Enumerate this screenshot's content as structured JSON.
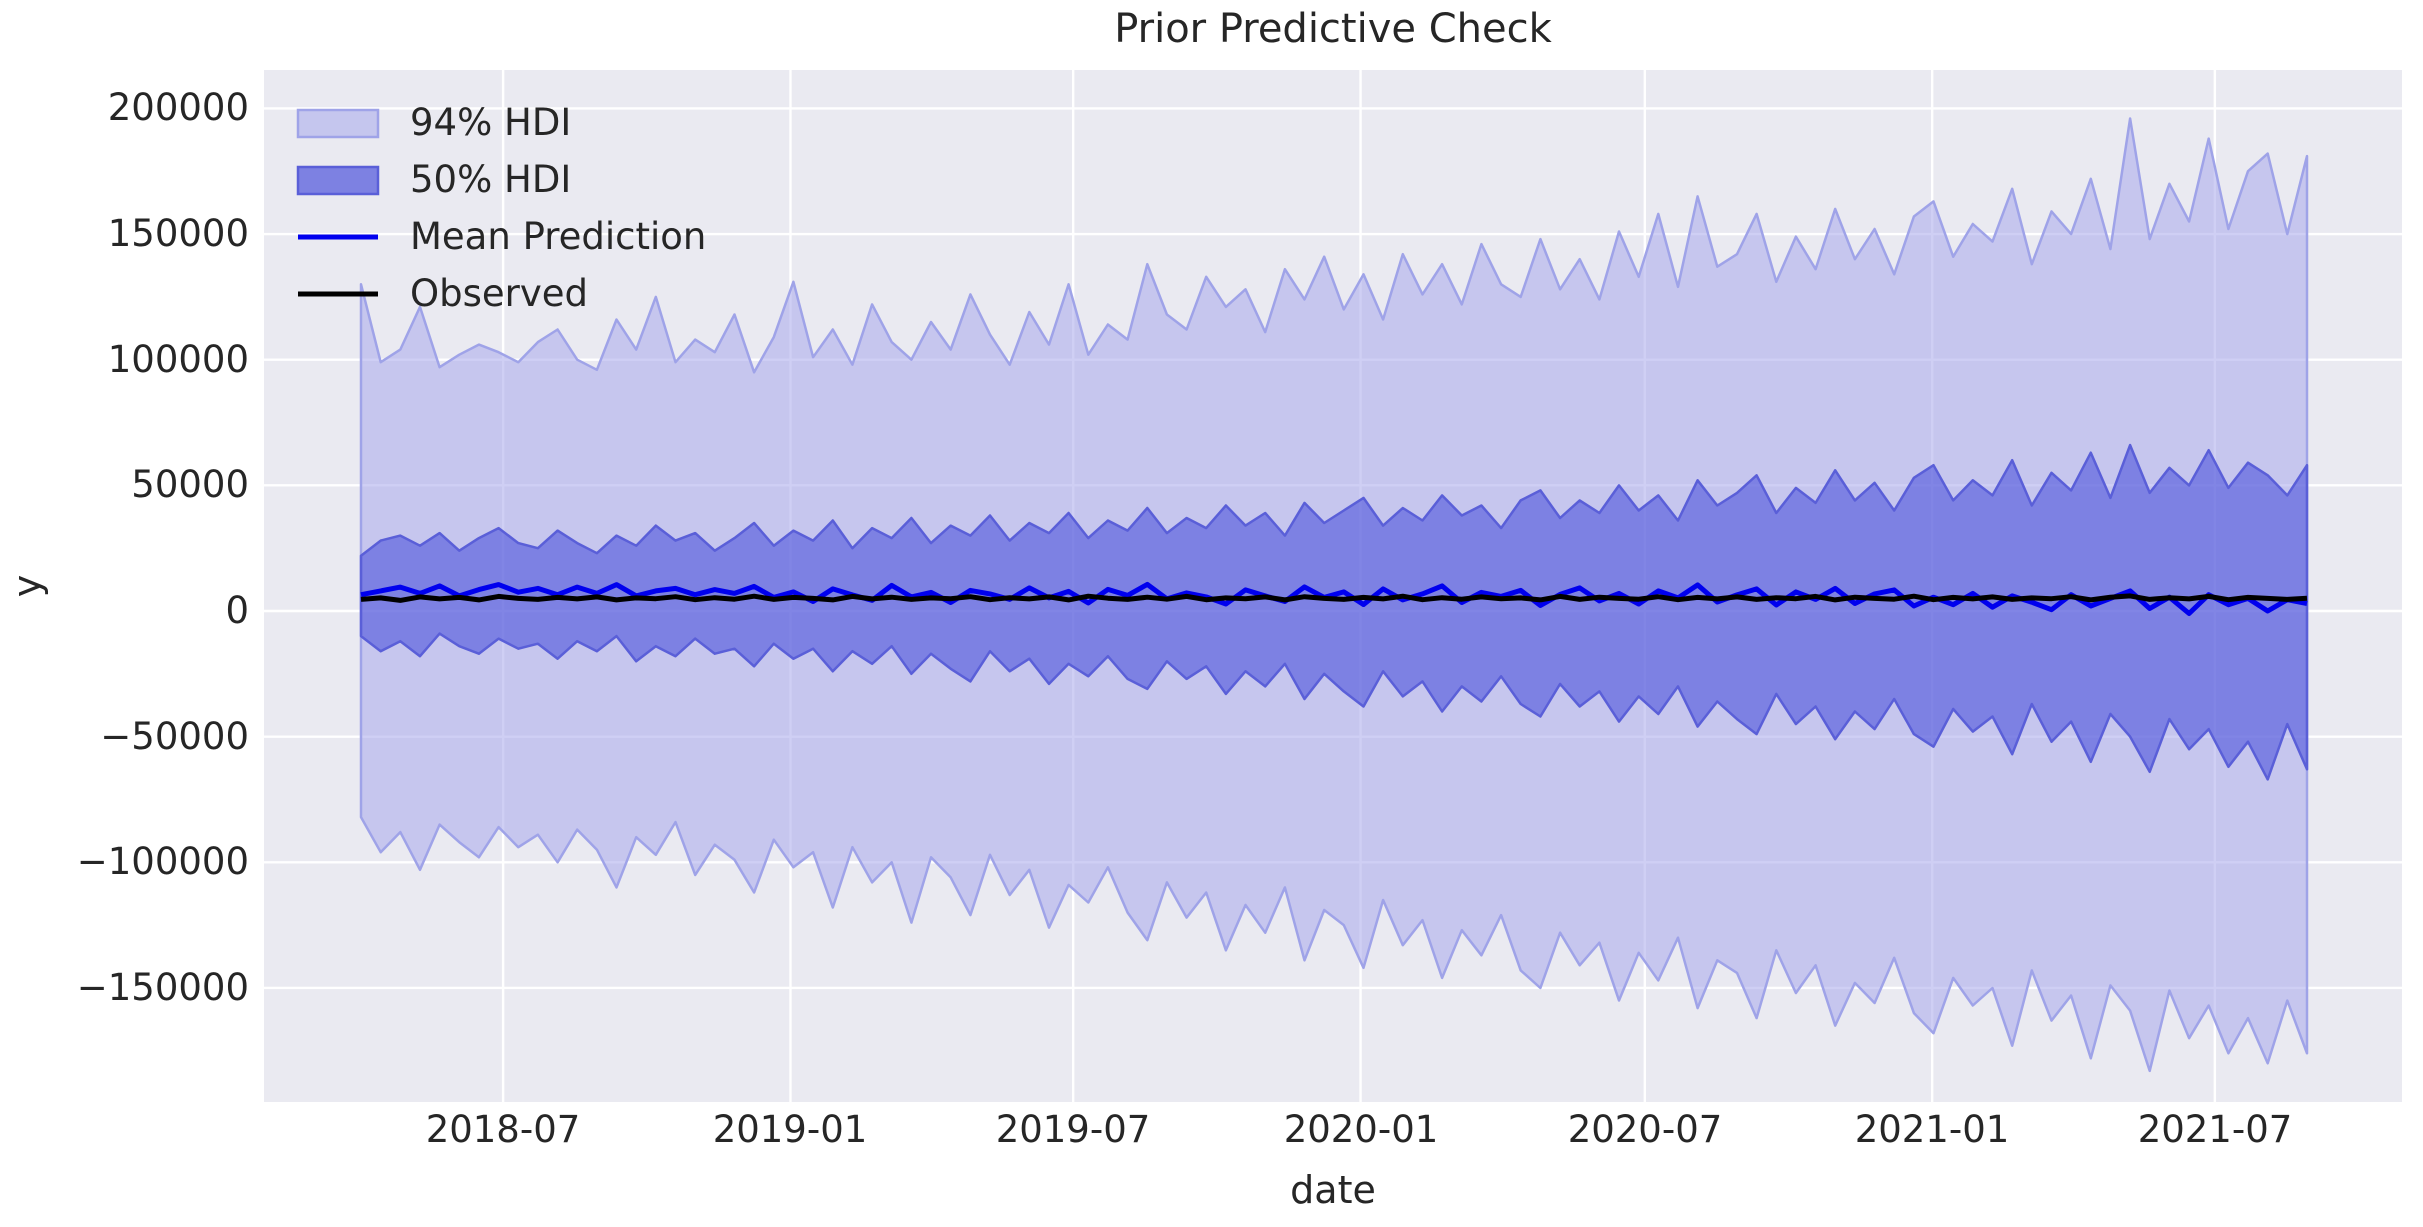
{
  "figure": {
    "title": "Prior Predictive Check",
    "xlabel": "date",
    "ylabel": "y"
  },
  "legend": {
    "position": "upper left",
    "items": [
      {
        "label": "94% HDI",
        "type": "patch",
        "fill": "#c5c6ee",
        "edge": "#9fa3e8"
      },
      {
        "label": "50% HDI",
        "type": "patch",
        "fill": "#7d81e2",
        "edge": "#5a5fd8"
      },
      {
        "label": "Mean Prediction",
        "type": "line",
        "color": "#0000ee"
      },
      {
        "label": "Observed",
        "type": "line",
        "color": "#000000"
      }
    ]
  },
  "style": {
    "figure_bg": "#ffffff",
    "plot_bg": "#eaeaf1",
    "grid": "#ffffff",
    "text": "#262626",
    "band94_fill": "rgba(167,168,235,0.55)",
    "band94_edge": "#9fa3e8",
    "band50_fill": "rgba(81,87,219,0.62)",
    "band50_edge": "#5a5fd8",
    "mean_color": "#0000ee",
    "observed_color": "#000000"
  },
  "chart_data": {
    "type": "line",
    "title": "Prior Predictive Check",
    "xlabel": "date",
    "ylabel": "y",
    "grid": true,
    "legend_position": "upper left",
    "ylim": [
      -196000,
      216000
    ],
    "x_axis": {
      "start_date": "2018-04-01",
      "end_date": "2021-08-29",
      "total_days": 1246,
      "note": "values are estimates read from the plot; 100 evenly spaced sample points",
      "ticks": [
        {
          "label": "2018-07",
          "day": 91
        },
        {
          "label": "2019-01",
          "day": 275
        },
        {
          "label": "2019-07",
          "day": 456
        },
        {
          "label": "2020-01",
          "day": 640
        },
        {
          "label": "2020-07",
          "day": 822
        },
        {
          "label": "2021-01",
          "day": 1006
        },
        {
          "label": "2021-07",
          "day": 1187
        }
      ]
    },
    "y_axis": {
      "ticks": [
        {
          "label": "200000",
          "value": 200000
        },
        {
          "label": "150000",
          "value": 150000
        },
        {
          "label": "100000",
          "value": 100000
        },
        {
          "label": "50000",
          "value": 50000
        },
        {
          "label": "0",
          "value": 0
        },
        {
          "label": "−50000",
          "value": -50000
        },
        {
          "label": "−100000",
          "value": -100000
        },
        {
          "label": "−150000",
          "value": -150000
        }
      ]
    },
    "series": [
      {
        "name": "94% HDI upper",
        "values": [
          130000,
          99000,
          104000,
          121000,
          97000,
          102000,
          106000,
          103000,
          99000,
          107000,
          112000,
          100000,
          96000,
          116000,
          104000,
          125000,
          99000,
          108000,
          103000,
          118000,
          95000,
          109000,
          131000,
          101000,
          112000,
          98000,
          122000,
          107000,
          100000,
          115000,
          104000,
          126000,
          110000,
          98000,
          119000,
          106000,
          130000,
          102000,
          114000,
          108000,
          138000,
          118000,
          112000,
          133000,
          121000,
          128000,
          111000,
          136000,
          124000,
          141000,
          120000,
          134000,
          116000,
          142000,
          126000,
          138000,
          122000,
          146000,
          130000,
          125000,
          148000,
          128000,
          140000,
          124000,
          151000,
          133000,
          158000,
          129000,
          165000,
          137000,
          142000,
          158000,
          131000,
          149000,
          136000,
          160000,
          140000,
          152000,
          134000,
          157000,
          163000,
          141000,
          154000,
          147000,
          168000,
          138000,
          159000,
          150000,
          172000,
          144000,
          196000,
          148000,
          170000,
          155000,
          188000,
          152000,
          175000,
          182000,
          150000,
          181000
        ]
      },
      {
        "name": "94% HDI lower",
        "values": [
          -82000,
          -96000,
          -88000,
          -103000,
          -85000,
          -92000,
          -98000,
          -86000,
          -94000,
          -89000,
          -100000,
          -87000,
          -95000,
          -110000,
          -90000,
          -97000,
          -84000,
          -105000,
          -93000,
          -99000,
          -112000,
          -91000,
          -102000,
          -96000,
          -118000,
          -94000,
          -108000,
          -100000,
          -124000,
          -98000,
          -106000,
          -121000,
          -97000,
          -113000,
          -103000,
          -126000,
          -109000,
          -116000,
          -102000,
          -120000,
          -131000,
          -108000,
          -122000,
          -112000,
          -135000,
          -117000,
          -128000,
          -110000,
          -139000,
          -119000,
          -125000,
          -142000,
          -115000,
          -133000,
          -123000,
          -146000,
          -127000,
          -137000,
          -121000,
          -143000,
          -150000,
          -128000,
          -141000,
          -132000,
          -155000,
          -136000,
          -147000,
          -130000,
          -158000,
          -139000,
          -144000,
          -162000,
          -135000,
          -152000,
          -141000,
          -165000,
          -148000,
          -156000,
          -138000,
          -160000,
          -168000,
          -146000,
          -157000,
          -150000,
          -173000,
          -143000,
          -163000,
          -153000,
          -178000,
          -149000,
          -159000,
          -183000,
          -151000,
          -170000,
          -157000,
          -176000,
          -162000,
          -180000,
          -155000,
          -176000
        ]
      },
      {
        "name": "50% HDI upper",
        "values": [
          22000,
          28000,
          30000,
          26000,
          31000,
          24000,
          29000,
          33000,
          27000,
          25000,
          32000,
          27000,
          23000,
          30000,
          26000,
          34000,
          28000,
          31000,
          24000,
          29000,
          35000,
          26000,
          32000,
          28000,
          36000,
          25000,
          33000,
          29000,
          37000,
          27000,
          34000,
          30000,
          38000,
          28000,
          35000,
          31000,
          39000,
          29000,
          36000,
          32000,
          41000,
          31000,
          37000,
          33000,
          42000,
          34000,
          39000,
          30000,
          43000,
          35000,
          40000,
          45000,
          34000,
          41000,
          36000,
          46000,
          38000,
          42000,
          33000,
          44000,
          48000,
          37000,
          44000,
          39000,
          50000,
          40000,
          46000,
          36000,
          52000,
          42000,
          47000,
          54000,
          39000,
          49000,
          43000,
          56000,
          44000,
          51000,
          40000,
          53000,
          58000,
          44000,
          52000,
          46000,
          60000,
          42000,
          55000,
          48000,
          63000,
          45000,
          66000,
          47000,
          57000,
          50000,
          64000,
          49000,
          59000,
          54000,
          46000,
          58000
        ]
      },
      {
        "name": "50% HDI lower",
        "values": [
          -10000,
          -16000,
          -12000,
          -18000,
          -9000,
          -14000,
          -17000,
          -11000,
          -15000,
          -13000,
          -19000,
          -12000,
          -16000,
          -10000,
          -20000,
          -14000,
          -18000,
          -11000,
          -17000,
          -15000,
          -22000,
          -13000,
          -19000,
          -15000,
          -24000,
          -16000,
          -21000,
          -14000,
          -25000,
          -17000,
          -23000,
          -28000,
          -16000,
          -24000,
          -19000,
          -29000,
          -21000,
          -26000,
          -18000,
          -27000,
          -31000,
          -20000,
          -27000,
          -22000,
          -33000,
          -24000,
          -30000,
          -21000,
          -35000,
          -25000,
          -32000,
          -38000,
          -24000,
          -34000,
          -28000,
          -40000,
          -30000,
          -36000,
          -26000,
          -37000,
          -42000,
          -29000,
          -38000,
          -32000,
          -44000,
          -34000,
          -41000,
          -30000,
          -46000,
          -36000,
          -43000,
          -49000,
          -33000,
          -45000,
          -38000,
          -51000,
          -40000,
          -47000,
          -35000,
          -49000,
          -54000,
          -39000,
          -48000,
          -42000,
          -57000,
          -37000,
          -52000,
          -44000,
          -60000,
          -41000,
          -50000,
          -64000,
          -43000,
          -55000,
          -47000,
          -62000,
          -52000,
          -67000,
          -45000,
          -63000
        ]
      },
      {
        "name": "Mean Prediction",
        "values": [
          6500,
          8000,
          9500,
          7000,
          10000,
          6000,
          8500,
          10500,
          7500,
          9000,
          6500,
          9500,
          7000,
          10500,
          6000,
          8000,
          9000,
          6500,
          8500,
          7000,
          9800,
          5400,
          7600,
          3800,
          8800,
          6400,
          4200,
          10200,
          5600,
          7400,
          3400,
          8200,
          6800,
          4600,
          9200,
          5200,
          7800,
          3200,
          8600,
          6200,
          10600,
          4800,
          7200,
          5600,
          2800,
          8400,
          6000,
          3800,
          9600,
          5400,
          7600,
          2600,
          8800,
          4400,
          6800,
          10000,
          3400,
          7400,
          5800,
          8200,
          2200,
          6600,
          9200,
          4000,
          7000,
          2800,
          8000,
          5200,
          10400,
          3600,
          6400,
          8800,
          2400,
          7600,
          4600,
          9000,
          3000,
          6800,
          8400,
          2000,
          5500,
          2500,
          7000,
          1500,
          6000,
          3500,
          500,
          6500,
          2000,
          5000,
          8000,
          1000,
          5500,
          -1000,
          6500,
          2500,
          5000,
          0,
          4500,
          3000
        ]
      },
      {
        "name": "Observed",
        "values": [
          4600,
          5200,
          4200,
          5600,
          4800,
          5400,
          4400,
          5800,
          5000,
          4600,
          5400,
          4800,
          5600,
          4400,
          5200,
          4900,
          5700,
          4500,
          5300,
          4700,
          5900,
          4600,
          5400,
          5000,
          4400,
          5800,
          4800,
          5500,
          4600,
          5200,
          4900,
          5700,
          4500,
          5300,
          4800,
          5600,
          4400,
          5900,
          5100,
          4600,
          5500,
          4700,
          5800,
          4500,
          5200,
          4900,
          5600,
          4400,
          5700,
          5000,
          4600,
          5400,
          4800,
          5900,
          4500,
          5300,
          4700,
          5600,
          4900,
          5200,
          4400,
          5800,
          4600,
          5500,
          5000,
          4700,
          5700,
          4500,
          5400,
          4800,
          5600,
          4600,
          5300,
          4900,
          5800,
          4400,
          5500,
          5000,
          4700,
          5900,
          4500,
          5400,
          4800,
          5600,
          4600,
          5200,
          4900,
          5700,
          4400,
          5500,
          6000,
          4600,
          5300,
          4800,
          5800,
          4500,
          5400,
          5000,
          4600,
          5100
        ]
      }
    ]
  }
}
